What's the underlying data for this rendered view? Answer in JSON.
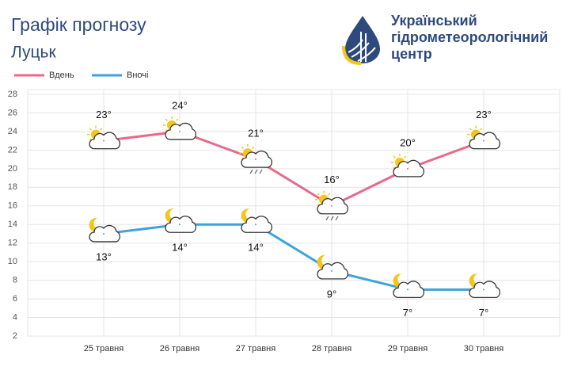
{
  "chart_data": {
    "type": "line",
    "title": "Графік прогнозу",
    "subtitle": "Луцьк",
    "logo_text": [
      "Український",
      "гідрометеорологічний",
      "центр"
    ],
    "categories": [
      "25 травня",
      "26 травня",
      "27 травня",
      "28 травня",
      "29 травня",
      "30 травня"
    ],
    "series": [
      {
        "name": "Вдень",
        "color": "#e8698a",
        "values": [
          23,
          24,
          21,
          16,
          20,
          23
        ],
        "value_labels": [
          "23°",
          "24°",
          "21°",
          "16°",
          "20°",
          "23°"
        ]
      },
      {
        "name": "Вночі",
        "color": "#3ea2dc",
        "values": [
          13,
          14,
          14,
          9,
          7,
          7
        ],
        "value_labels": [
          "13°",
          "14°",
          "14°",
          "9°",
          "7°",
          "7°"
        ]
      }
    ],
    "ylim": [
      2,
      28
    ],
    "yticks": [
      2,
      4,
      6,
      8,
      10,
      12,
      14,
      16,
      18,
      20,
      22,
      24,
      26,
      28
    ],
    "grid": true,
    "legend": "top-left"
  }
}
